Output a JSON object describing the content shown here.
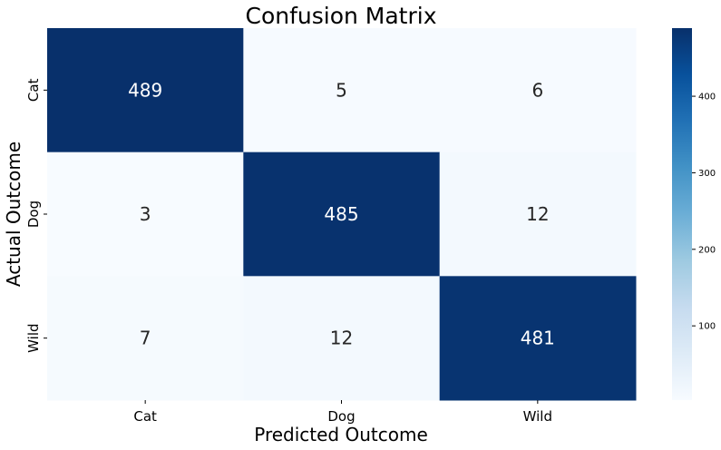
{
  "chart_data": {
    "type": "heatmap",
    "title": "Confusion Matrix",
    "xlabel": "Predicted Outcome",
    "ylabel": "Actual Outcome",
    "x_categories": [
      "Cat",
      "Dog",
      "Wild"
    ],
    "y_categories": [
      "Cat",
      "Dog",
      "Wild"
    ],
    "values": [
      [
        489,
        5,
        6
      ],
      [
        3,
        485,
        12
      ],
      [
        7,
        12,
        481
      ]
    ],
    "colormap": "Blues",
    "color_low": "#f7fbff",
    "color_high": "#08306b",
    "colorbar": {
      "range": [
        3,
        489
      ],
      "ticks": [
        100,
        200,
        300,
        400
      ]
    }
  }
}
